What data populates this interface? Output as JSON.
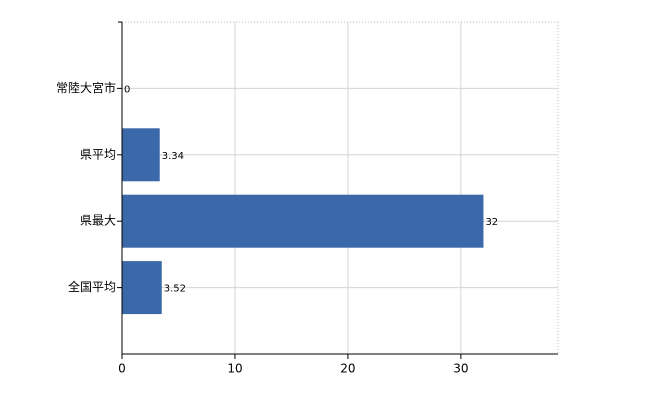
{
  "chart_data": {
    "type": "bar",
    "orientation": "horizontal",
    "categories": [
      "常陸大宮市",
      "県平均",
      "県最大",
      "全国平均"
    ],
    "values": [
      0,
      3.34,
      32,
      3.52
    ],
    "color": "#3a68a8",
    "xlim": [
      0,
      38.6
    ],
    "xticks": [
      0,
      10,
      20,
      30
    ],
    "grid": true
  }
}
